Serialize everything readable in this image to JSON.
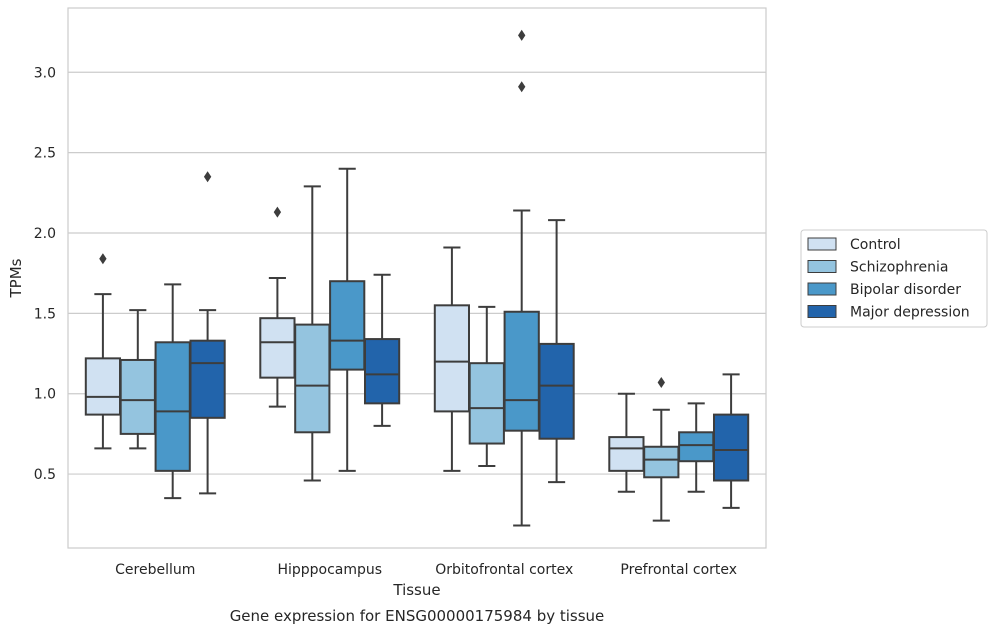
{
  "chart_data": {
    "type": "box",
    "caption": "Gene expression for ENSG00000175984 by tissue",
    "xlabel": "Tissue",
    "ylabel": "TPMs",
    "ylim": [
      0.04,
      3.4
    ],
    "yticks": [
      "0.5",
      "1.0",
      "1.5",
      "2.0",
      "2.5",
      "3.0"
    ],
    "grid": "horizontal",
    "legend_position": "right",
    "categories": [
      "Cerebellum",
      "Hipppocampus",
      "Orbitofrontal cortex",
      "Prefrontal cortex"
    ],
    "series": [
      {
        "name": "Control",
        "color": "#d0e1f2",
        "boxes": [
          {
            "whisker_low": 0.66,
            "q1": 0.87,
            "median": 0.98,
            "q3": 1.22,
            "whisker_high": 1.62,
            "outliers": [
              1.84
            ]
          },
          {
            "whisker_low": 0.92,
            "q1": 1.1,
            "median": 1.32,
            "q3": 1.47,
            "whisker_high": 1.72,
            "outliers": [
              2.13
            ]
          },
          {
            "whisker_low": 0.52,
            "q1": 0.89,
            "median": 1.2,
            "q3": 1.55,
            "whisker_high": 1.91,
            "outliers": []
          },
          {
            "whisker_low": 0.39,
            "q1": 0.52,
            "median": 0.66,
            "q3": 0.73,
            "whisker_high": 1.0,
            "outliers": []
          }
        ]
      },
      {
        "name": "Schizophrenia",
        "color": "#94c4df",
        "boxes": [
          {
            "whisker_low": 0.66,
            "q1": 0.75,
            "median": 0.96,
            "q3": 1.21,
            "whisker_high": 1.52,
            "outliers": []
          },
          {
            "whisker_low": 0.46,
            "q1": 0.76,
            "median": 1.05,
            "q3": 1.43,
            "whisker_high": 2.29,
            "outliers": []
          },
          {
            "whisker_low": 0.55,
            "q1": 0.69,
            "median": 0.91,
            "q3": 1.19,
            "whisker_high": 1.54,
            "outliers": []
          },
          {
            "whisker_low": 0.21,
            "q1": 0.48,
            "median": 0.59,
            "q3": 0.67,
            "whisker_high": 0.9,
            "outliers": [
              1.07
            ]
          }
        ]
      },
      {
        "name": "Bipolar disorder",
        "color": "#4a98c9",
        "boxes": [
          {
            "whisker_low": 0.35,
            "q1": 0.52,
            "median": 0.89,
            "q3": 1.32,
            "whisker_high": 1.68,
            "outliers": []
          },
          {
            "whisker_low": 0.52,
            "q1": 1.15,
            "median": 1.33,
            "q3": 1.7,
            "whisker_high": 2.4,
            "outliers": []
          },
          {
            "whisker_low": 0.18,
            "q1": 0.77,
            "median": 0.96,
            "q3": 1.51,
            "whisker_high": 2.14,
            "outliers": [
              3.23,
              2.91
            ]
          },
          {
            "whisker_low": 0.39,
            "q1": 0.58,
            "median": 0.68,
            "q3": 0.76,
            "whisker_high": 0.94,
            "outliers": []
          }
        ]
      },
      {
        "name": "Major depression",
        "color": "#2264ab",
        "boxes": [
          {
            "whisker_low": 0.38,
            "q1": 0.85,
            "median": 1.19,
            "q3": 1.33,
            "whisker_high": 1.52,
            "outliers": [
              2.35
            ]
          },
          {
            "whisker_low": 0.8,
            "q1": 0.94,
            "median": 1.12,
            "q3": 1.34,
            "whisker_high": 1.74,
            "outliers": []
          },
          {
            "whisker_low": 0.45,
            "q1": 0.72,
            "median": 1.05,
            "q3": 1.31,
            "whisker_high": 2.08,
            "outliers": []
          },
          {
            "whisker_low": 0.29,
            "q1": 0.46,
            "median": 0.65,
            "q3": 0.87,
            "whisker_high": 1.12,
            "outliers": []
          }
        ]
      }
    ]
  }
}
